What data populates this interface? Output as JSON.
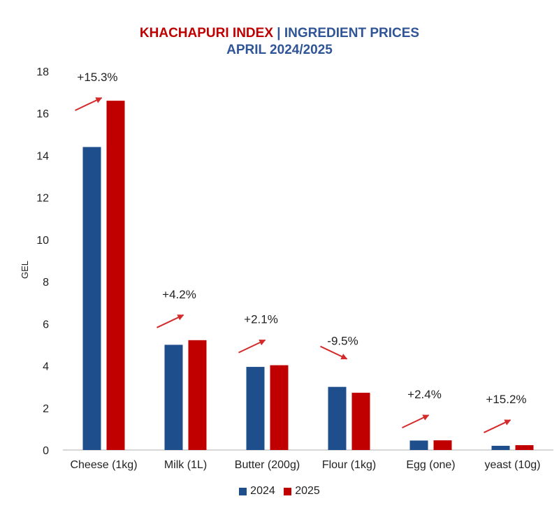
{
  "title": {
    "brand": "KHACHAPURI INDEX",
    "separator": " | ",
    "subject": "INGREDIENT PRICES",
    "line2": "APRIL 2024/2025"
  },
  "colors": {
    "brand_red": "#c00000",
    "title_blue": "#2f5597"
  },
  "chart_data": {
    "type": "bar",
    "categories": [
      "Cheese (1kg)",
      "Milk (1L)",
      "Butter (200g)",
      "Flour (1kg)",
      "Egg (one)",
      "yeast (10g)"
    ],
    "series": [
      {
        "name": "2024",
        "color": "#1f4e8c",
        "values": [
          14.4,
          5.0,
          3.95,
          3.0,
          0.45,
          0.2
        ]
      },
      {
        "name": "2025",
        "color": "#c00000",
        "values": [
          16.6,
          5.22,
          4.03,
          2.72,
          0.46,
          0.23
        ]
      }
    ],
    "annotations": [
      "+15.3%",
      "+4.2%",
      "+2.1%",
      "-9.5%",
      "+2.4%",
      "+15.2%"
    ],
    "ylabel": "GEL",
    "ylim": [
      0,
      18
    ],
    "yticks": [
      0,
      2,
      4,
      6,
      8,
      10,
      12,
      14,
      16,
      18
    ],
    "grid": false,
    "legend_position": "bottom"
  }
}
